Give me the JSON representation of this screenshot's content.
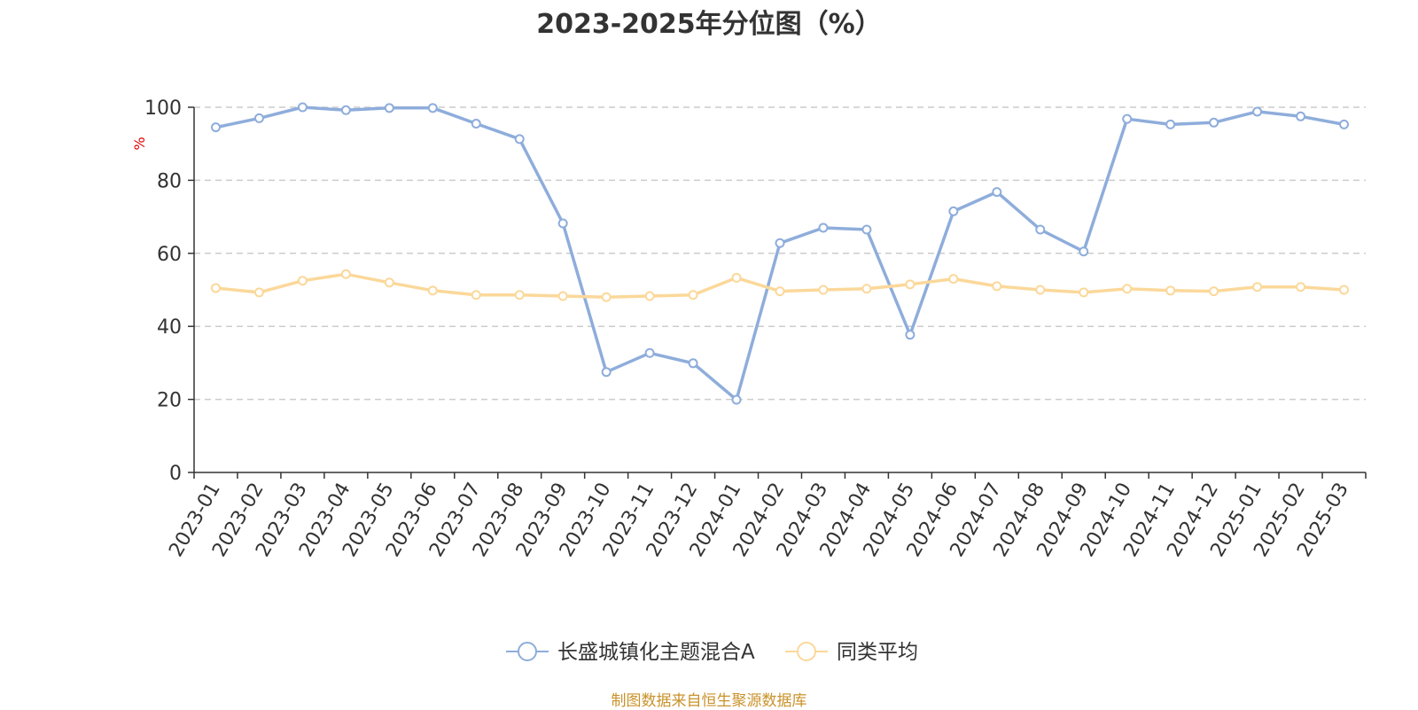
{
  "chart_data": {
    "type": "line",
    "title": "2023-2025年分位图（%）",
    "ylabel": "%",
    "xlabel": "",
    "ylim": [
      0,
      100
    ],
    "yticks": [
      0,
      20,
      40,
      60,
      80,
      100
    ],
    "grid": true,
    "legend_position": "bottom",
    "categories": [
      "2023-01",
      "2023-02",
      "2023-03",
      "2023-04",
      "2023-05",
      "2023-06",
      "2023-07",
      "2023-08",
      "2023-09",
      "2023-10",
      "2023-11",
      "2023-12",
      "2024-01",
      "2024-02",
      "2024-03",
      "2024-04",
      "2024-05",
      "2024-06",
      "2024-07",
      "2024-08",
      "2024-09",
      "2024-10",
      "2024-11",
      "2024-12",
      "2025-01",
      "2025-02",
      "2025-03"
    ],
    "series": [
      {
        "name": "长盛城镇化主题混合A",
        "color": "#8eaddb",
        "values": [
          94.5,
          97.0,
          100.0,
          99.2,
          99.8,
          99.8,
          95.5,
          91.3,
          68.2,
          27.5,
          32.7,
          29.9,
          19.9,
          62.8,
          67.0,
          66.5,
          37.7,
          71.5,
          76.8,
          66.5,
          60.5,
          96.8,
          95.3,
          95.8,
          98.8,
          97.5,
          95.3
        ]
      },
      {
        "name": "同类平均",
        "color": "#fbd89a",
        "values": [
          50.5,
          49.3,
          52.5,
          54.3,
          52.0,
          49.8,
          48.6,
          48.6,
          48.3,
          48.0,
          48.3,
          48.6,
          53.3,
          49.6,
          50.0,
          50.3,
          51.5,
          53.0,
          51.0,
          50.0,
          49.3,
          50.3,
          49.8,
          49.6,
          50.8,
          50.8,
          50.0
        ]
      }
    ]
  },
  "source_note": "制图数据来自恒生聚源数据库"
}
